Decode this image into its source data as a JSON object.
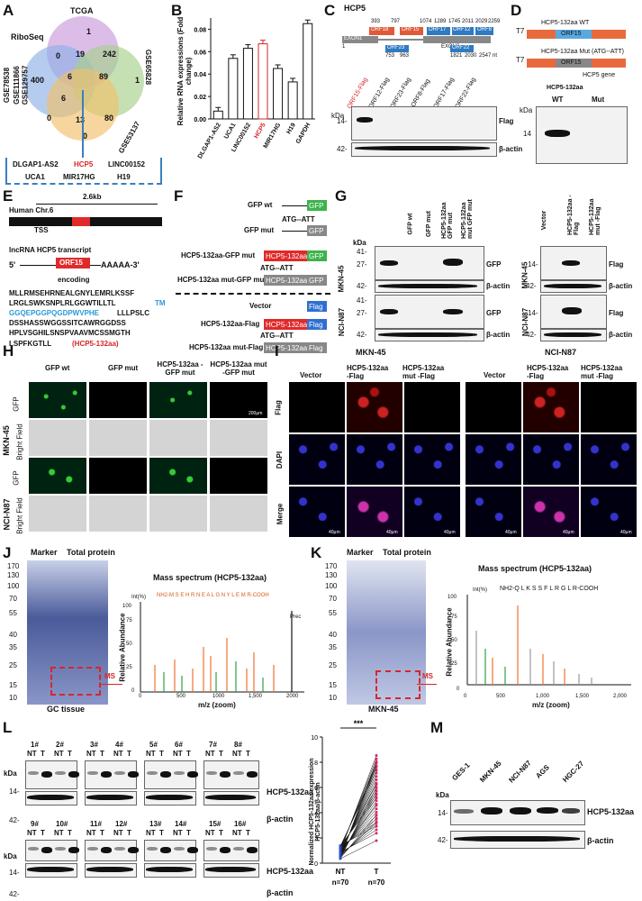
{
  "labels": {
    "A": "A",
    "B": "B",
    "C": "C",
    "D": "D",
    "E": "E",
    "F": "F",
    "G": "G",
    "H": "H",
    "I": "I",
    "J": "J",
    "K": "K",
    "L": "L",
    "M": "M"
  },
  "A": {
    "title": "TCGA",
    "riboseq": "RiboSeq",
    "gse_left": [
      "GSE78538",
      "GSE111866",
      "GSE129757"
    ],
    "gse_right1": "GSE65828",
    "gse_right2": "GSE53137",
    "nums": [
      "1",
      "19",
      "242",
      "0",
      "6",
      "89",
      "400",
      "1",
      "6",
      "0",
      "13",
      "80",
      "0"
    ],
    "genes": [
      "DLGAP1-AS2",
      "HCP5",
      "LINC00152",
      "UCA1",
      "MIR17HG",
      "H19"
    ]
  },
  "B": {
    "ylabel": "Relative RNA expressions (Fold change)",
    "ticks": [
      "0.00",
      "0.02",
      "0.04",
      "0.06",
      "0.08"
    ]
  },
  "chart_data": {
    "type": "bar",
    "categories": [
      "DLGAP1-AS2",
      "UCA1",
      "LINC00152",
      "HCP5",
      "MIR17HG",
      "H19",
      "GAPDH"
    ],
    "values": [
      0.007,
      0.054,
      0.063,
      0.067,
      0.045,
      0.033,
      0.085
    ],
    "ylabel": "Relative RNA expressions (Fold change)",
    "ylim": [
      0,
      0.09
    ]
  },
  "C": {
    "title": "HCP5",
    "orfs_top": [
      "ORF18",
      "ORF15",
      "ORF17",
      "ORF12",
      "ORF8"
    ],
    "orfs_bot": [
      "ORF23",
      "ORF22"
    ],
    "exons": [
      "EXON1",
      "EXON2"
    ],
    "coords_top": [
      "393",
      "797",
      "1074",
      "1289",
      "1745",
      "2011",
      "2029",
      "2259"
    ],
    "coords_bot": [
      "753",
      "963",
      "1821",
      "2030"
    ],
    "start": "1",
    "end": "2547 nt",
    "lanes": [
      "ORF15-Flag",
      "ORF12-Flag",
      "ORF23-Flag",
      "ORF8-Flag",
      "ORF17-Flag",
      "ORF22-Flag"
    ],
    "kda": "kDa",
    "m1": "14-",
    "m2": "42-",
    "flag": "Flag",
    "actin": "β-actin"
  },
  "D": {
    "t7": "T7",
    "wt": "HCP5-132aa WT",
    "mut": "HCP5-132aa Mut (ATG--ATT)",
    "orf": "ORF15",
    "gene": "HCP5 gene",
    "blot_title": "HCP5-132aa",
    "lanes": [
      "WT",
      "Mut"
    ],
    "kda": "kDa",
    "m1": "14"
  },
  "E": {
    "chr": "Human Chr.6",
    "len": "2.6kb",
    "tss": "TSS",
    "transcript": "lncRNA HCP5 transcript",
    "five": "5'",
    "orf": "ORF15",
    "three": "AAAAA-3'",
    "encoding": "encoding",
    "seq": [
      "MLLRMSEHRNEALGNYLEMRLKSSF",
      "LRGLSWKSNPLRLGGWTILLTL",
      "GGQEPGGPQGDPWVPHE",
      "LLLPSLC",
      "DSSHASSWGGSSITCAWRGGDSS",
      "HPLVSGHILSNSPVAAVMCSSMGTH",
      "LSPFKGTLL",
      "(HCP5-132aa)"
    ],
    "seq_tail": "TM"
  },
  "F": {
    "rows": [
      "GFP wt",
      "GFP mut",
      "HCP5-132aa-GFP mut",
      "HCP5-132aa mut-GFP mut",
      "Vector",
      "HCP5-132aa-Flag",
      "HCP5-132aa mut-Flag"
    ],
    "atg": "ATG--ATT",
    "gfp": "GFP",
    "flag": "Flag",
    "hcp": "HCP5-132aa"
  },
  "G": {
    "lanes_left": [
      "GFP wt",
      "GFP mut",
      "HCP5-132aa GFP mut",
      "HCP5-132aa mut GFP mut"
    ],
    "lanes_right": [
      "Vector",
      "HCP5-132aa -Flag",
      "HCP5-132aa mut -Flag"
    ],
    "cells": [
      "MKN-45",
      "NCI-N87"
    ],
    "kda": "kDa",
    "m41": "41-",
    "m27": "27-",
    "m42": "42-",
    "m14": "14-",
    "gfp": "GFP",
    "actin": "β-actin",
    "flag": "Flag"
  },
  "H": {
    "cols": [
      "GFP wt",
      "GFP mut",
      "HCP5-132aa -GFP mut",
      "HCP5-132aa mut -GFP mut"
    ],
    "rows": [
      "GFP",
      "Bright Field"
    ],
    "cells": [
      "MKN-45",
      "NCI-N87"
    ],
    "scale": "200μm"
  },
  "I": {
    "cells": [
      "MKN-45",
      "NCI-N87"
    ],
    "cols": [
      "Vector",
      "HCP5-132aa -Flag",
      "HCP5-132aa mut -Flag"
    ],
    "rows": [
      "Flag",
      "DAPI",
      "Merge"
    ],
    "scale": "40μm"
  },
  "J": {
    "marker": "Marker",
    "total": "Total protein",
    "kda": [
      "170",
      "130",
      "100",
      "70",
      "55",
      "40",
      "35",
      "25",
      "15",
      "10"
    ],
    "ms": "MS",
    "tissue": "GC tissue",
    "title": "Mass spectrum (HCP5-132aa)",
    "int": "Int(%)",
    "seq": "NH2-M S E H R N E A L G N Y L E M R-COOH",
    "prec": "Prec",
    "ylabel": "Relative Abundance",
    "xlabel": "m/z (zoom)",
    "yticks": [
      "0",
      "25",
      "50",
      "75",
      "100"
    ],
    "xticks": [
      "0",
      "500",
      "1000",
      "1,500",
      "2000"
    ]
  },
  "K": {
    "marker": "Marker",
    "total": "Total protein",
    "kda": [
      "170",
      "130",
      "100",
      "70",
      "55",
      "40",
      "35",
      "25",
      "15",
      "10"
    ],
    "ms": "MS",
    "cell": "MKN-45",
    "title": "Mass spectrum (HCP5-132aa)",
    "int": "Int(%)",
    "seq": "NH2-Q L K S S F L R G L R-COOH",
    "ylabel": "Relative Abundance",
    "xlabel": "m/z (zoom)",
    "yticks": [
      "0",
      "25",
      "50",
      "75",
      "100"
    ],
    "xticks": [
      "0",
      "500",
      "1,000",
      "1,500",
      "2,000"
    ]
  },
  "L": {
    "samples1": [
      "1#",
      "2#",
      "3#",
      "4#",
      "5#",
      "6#",
      "7#",
      "8#"
    ],
    "samples2": [
      "9#",
      "10#",
      "11#",
      "12#",
      "13#",
      "14#",
      "15#",
      "16#"
    ],
    "nt": "NT",
    "tt": "T",
    "kda": "kDa",
    "m14": "14-",
    "m42": "42-",
    "prot": "HCP5-132aa",
    "actin": "β-actin",
    "ylabel": "Normalized HCP5-132aa expression HCP5-132aa/β-actin",
    "sig": "***",
    "xl": [
      "NT",
      "T"
    ],
    "n": [
      "n=70",
      "n=70"
    ],
    "yticks": [
      "0",
      "2",
      "4",
      "6",
      "8",
      "10"
    ]
  },
  "M": {
    "lanes": [
      "GES-1",
      "MKN-45",
      "NCI-N87",
      "AGS",
      "HGC-27"
    ],
    "kda": "kDa",
    "m14": "14-",
    "m42": "42-",
    "prot": "HCP5-132aa",
    "actin": "β-actin"
  }
}
